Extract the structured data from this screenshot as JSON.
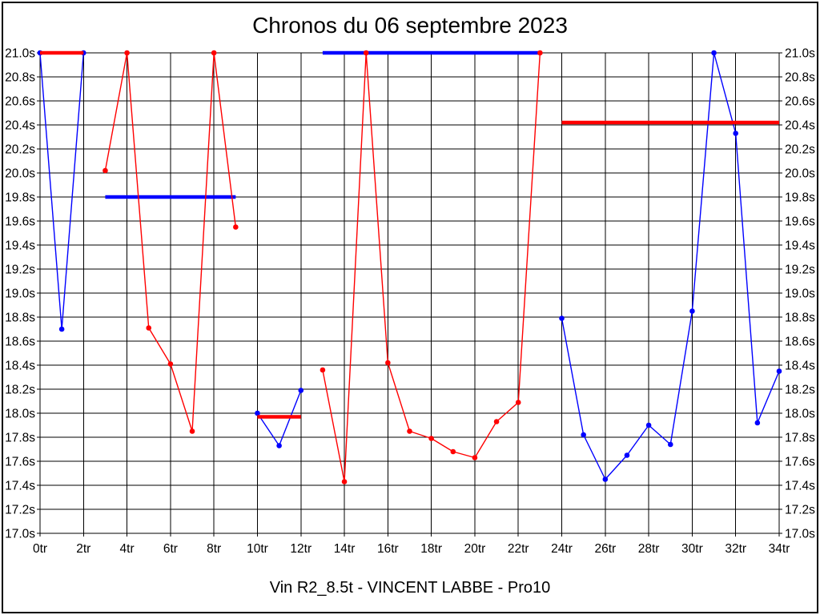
{
  "title": "Chronos du 06 septembre 2023",
  "footer": "Vin R2_8.5t - VINCENT LABBE - Pro10",
  "colors": {
    "red": "#FF0000",
    "blue": "#0000FF",
    "grid": "#000000",
    "background": "#FFFFFF"
  },
  "chart_data": {
    "type": "line",
    "title": "Chronos du 06 septembre 2023",
    "footer": "Vin R2_8.5t - VINCENT LABBE - Pro10",
    "x_unit": "tr",
    "y_unit": "s",
    "xlim": [
      0,
      34
    ],
    "ylim": [
      17.0,
      21.0
    ],
    "x_tick_step": 2,
    "y_tick_step": 0.2,
    "grid": true,
    "legend": "none",
    "x_tick_labels": [
      "0tr",
      "2tr",
      "4tr",
      "6tr",
      "8tr",
      "10tr",
      "12tr",
      "14tr",
      "16tr",
      "18tr",
      "20tr",
      "22tr",
      "24tr",
      "26tr",
      "28tr",
      "30tr",
      "32tr",
      "34tr"
    ],
    "y_tick_labels": [
      "21.0s",
      "20.8s",
      "20.6s",
      "20.4s",
      "20.2s",
      "20.0s",
      "19.8s",
      "19.6s",
      "19.4s",
      "19.2s",
      "19.0s",
      "18.8s",
      "18.6s",
      "18.4s",
      "18.2s",
      "18.0s",
      "17.8s",
      "17.6s",
      "17.4s",
      "17.2s",
      "17.0s"
    ],
    "series": [
      {
        "name": "driver-blue",
        "color": "#0000FF",
        "stints": [
          {
            "points": [
              [
                0,
                21.0
              ],
              [
                1,
                18.7
              ],
              [
                2,
                21.0
              ]
            ]
          },
          {
            "points": [
              [
                10,
                18.0
              ],
              [
                11,
                17.73
              ],
              [
                12,
                18.19
              ]
            ]
          },
          {
            "points": [
              [
                24,
                18.79
              ],
              [
                25,
                17.82
              ],
              [
                26,
                17.45
              ],
              [
                27,
                17.65
              ],
              [
                28,
                17.9
              ],
              [
                29,
                17.74
              ],
              [
                30,
                18.85
              ],
              [
                31,
                21.0
              ],
              [
                32,
                20.33
              ],
              [
                33,
                17.92
              ],
              [
                34,
                18.35
              ]
            ]
          }
        ],
        "average_lines": [
          {
            "y": 19.8,
            "x_start": 3,
            "x_end": 9
          },
          {
            "y": 21.0,
            "x_start": 13,
            "x_end": 23
          }
        ]
      },
      {
        "name": "driver-red",
        "color": "#FF0000",
        "stints": [
          {
            "points": [
              [
                3,
                20.02
              ],
              [
                4,
                21.0
              ],
              [
                5,
                18.71
              ],
              [
                6,
                18.41
              ],
              [
                7,
                17.85
              ],
              [
                8,
                21.0
              ],
              [
                9,
                19.55
              ]
            ]
          },
          {
            "points": [
              [
                13,
                18.36
              ],
              [
                14,
                17.43
              ],
              [
                15,
                21.0
              ],
              [
                16,
                18.42
              ],
              [
                17,
                17.85
              ],
              [
                18,
                17.79
              ],
              [
                19,
                17.68
              ],
              [
                20,
                17.63
              ],
              [
                21,
                17.93
              ],
              [
                22,
                18.09
              ],
              [
                23,
                21.0
              ]
            ]
          }
        ],
        "average_lines": [
          {
            "y": 21.0,
            "x_start": 0,
            "x_end": 2
          },
          {
            "y": 17.97,
            "x_start": 10,
            "x_end": 12
          },
          {
            "y": 20.42,
            "x_start": 24,
            "x_end": 34
          }
        ]
      }
    ]
  }
}
